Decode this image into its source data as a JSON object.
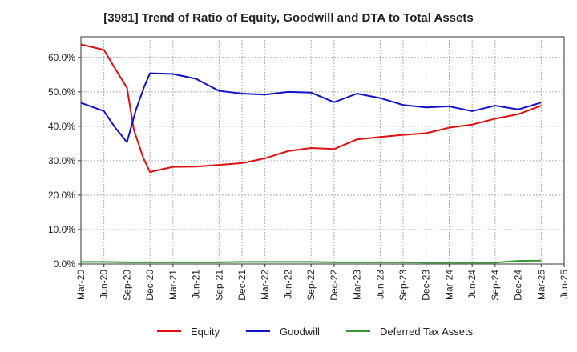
{
  "chart_data": {
    "type": "line",
    "title": "[3981]  Trend of Ratio of Equity, Goodwill and DTA to Total Assets",
    "xlabel": "",
    "ylabel": "",
    "x_tick_labels": [
      "Mar-20",
      "Jun-20",
      "Sep-20",
      "Dec-20",
      "Mar-21",
      "Jun-21",
      "Sep-21",
      "Dec-21",
      "Mar-22",
      "Jun-22",
      "Sep-22",
      "Dec-22",
      "Mar-23",
      "Jun-23",
      "Sep-23",
      "Dec-23",
      "Mar-24",
      "Jun-24",
      "Sep-24",
      "Dec-24",
      "Mar-25",
      "Jun-25"
    ],
    "y_tick_labels": [
      "0.0%",
      "10.0%",
      "20.0%",
      "30.0%",
      "40.0%",
      "50.0%",
      "60.0%"
    ],
    "ylim": [
      0,
      66
    ],
    "x_range_quarters": [
      0,
      21
    ],
    "grid": true,
    "legend_position": "bottom-center",
    "series": [
      {
        "name": "Equity",
        "color": "#dd1111",
        "x": [
          0,
          1,
          1.6,
          2,
          2.3,
          2.7,
          3,
          3.3,
          4,
          5,
          6,
          7,
          8,
          9,
          10,
          11,
          12,
          13,
          14,
          15,
          16,
          17,
          18,
          19,
          20
        ],
        "values": [
          63.8,
          62.2,
          55.5,
          51.2,
          39.0,
          31.0,
          26.7,
          27.2,
          28.2,
          28.3,
          28.8,
          29.3,
          30.7,
          32.8,
          33.7,
          33.4,
          36.2,
          36.9,
          37.5,
          38.0,
          39.6,
          40.5,
          42.2,
          43.5,
          46.0
        ]
      },
      {
        "name": "Goodwill",
        "color": "#1111cc",
        "x": [
          0,
          1,
          1.5,
          2,
          2.4,
          2.75,
          3,
          3.5,
          4,
          5,
          6,
          7,
          8,
          9,
          10,
          11,
          12,
          13,
          14,
          15,
          16,
          17,
          18,
          19,
          20
        ],
        "values": [
          46.8,
          44.4,
          39.5,
          35.4,
          45.0,
          51.5,
          55.4,
          55.3,
          55.2,
          53.8,
          50.3,
          49.5,
          49.2,
          50.0,
          49.8,
          47.0,
          49.5,
          48.2,
          46.2,
          45.5,
          45.8,
          44.4,
          46.0,
          44.9,
          46.9
        ]
      },
      {
        "name": "Deferred Tax Assets",
        "color": "#339933",
        "x": [
          0,
          1,
          2,
          3,
          4,
          5,
          6,
          7,
          8,
          9,
          10,
          11,
          12,
          13,
          14,
          15,
          16,
          17,
          18,
          19,
          20
        ],
        "values": [
          0.6,
          0.6,
          0.5,
          0.5,
          0.5,
          0.5,
          0.5,
          0.6,
          0.6,
          0.6,
          0.6,
          0.5,
          0.5,
          0.5,
          0.5,
          0.4,
          0.4,
          0.4,
          0.4,
          0.9,
          1.0
        ]
      }
    ]
  }
}
